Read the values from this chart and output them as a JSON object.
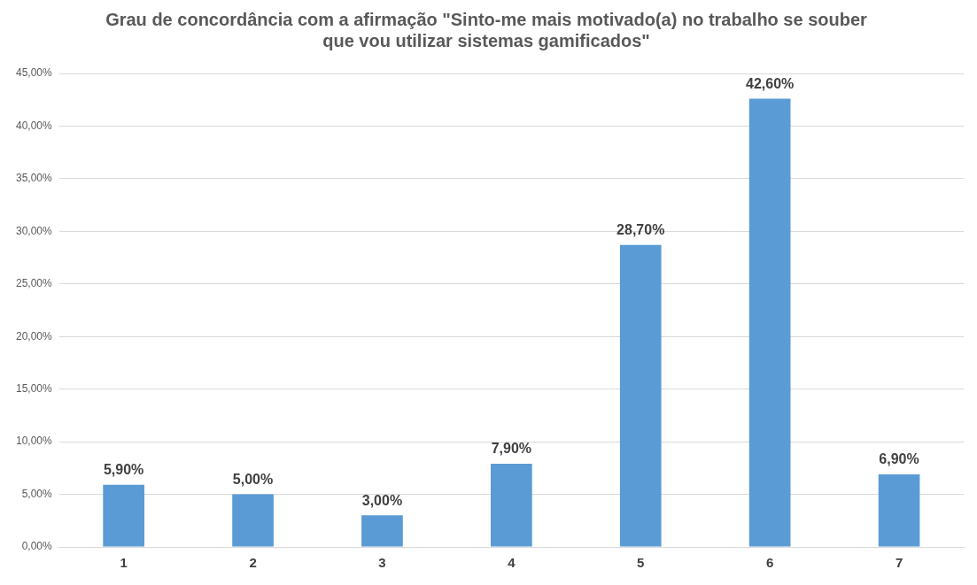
{
  "chart_data": {
    "type": "bar",
    "title": "Grau de concordância com a afirmação \"Sinto-me mais motivado(a) no trabalho se souber que vou utilizar sistemas gamificados\"",
    "categories": [
      "1",
      "2",
      "3",
      "4",
      "5",
      "6",
      "7"
    ],
    "values": [
      5.9,
      5.0,
      3.0,
      7.9,
      28.7,
      42.6,
      6.9
    ],
    "value_labels": [
      "5,90%",
      "5,00%",
      "3,00%",
      "7,90%",
      "28,70%",
      "42,60%",
      "6,90%"
    ],
    "color": "#5b9bd5",
    "ylim": [
      0,
      45
    ],
    "yticks": [
      {
        "value": 0,
        "label": "0,00%"
      },
      {
        "value": 5,
        "label": "5,00%"
      },
      {
        "value": 10,
        "label": "10,00%"
      },
      {
        "value": 15,
        "label": "15,00%"
      },
      {
        "value": 20,
        "label": "20,00%"
      },
      {
        "value": 25,
        "label": "25,00%"
      },
      {
        "value": 30,
        "label": "30,00%"
      },
      {
        "value": 35,
        "label": "35,00%"
      },
      {
        "value": 40,
        "label": "40,00%"
      },
      {
        "value": 45,
        "label": "45,00%"
      }
    ],
    "grid": "y",
    "legend": false
  }
}
